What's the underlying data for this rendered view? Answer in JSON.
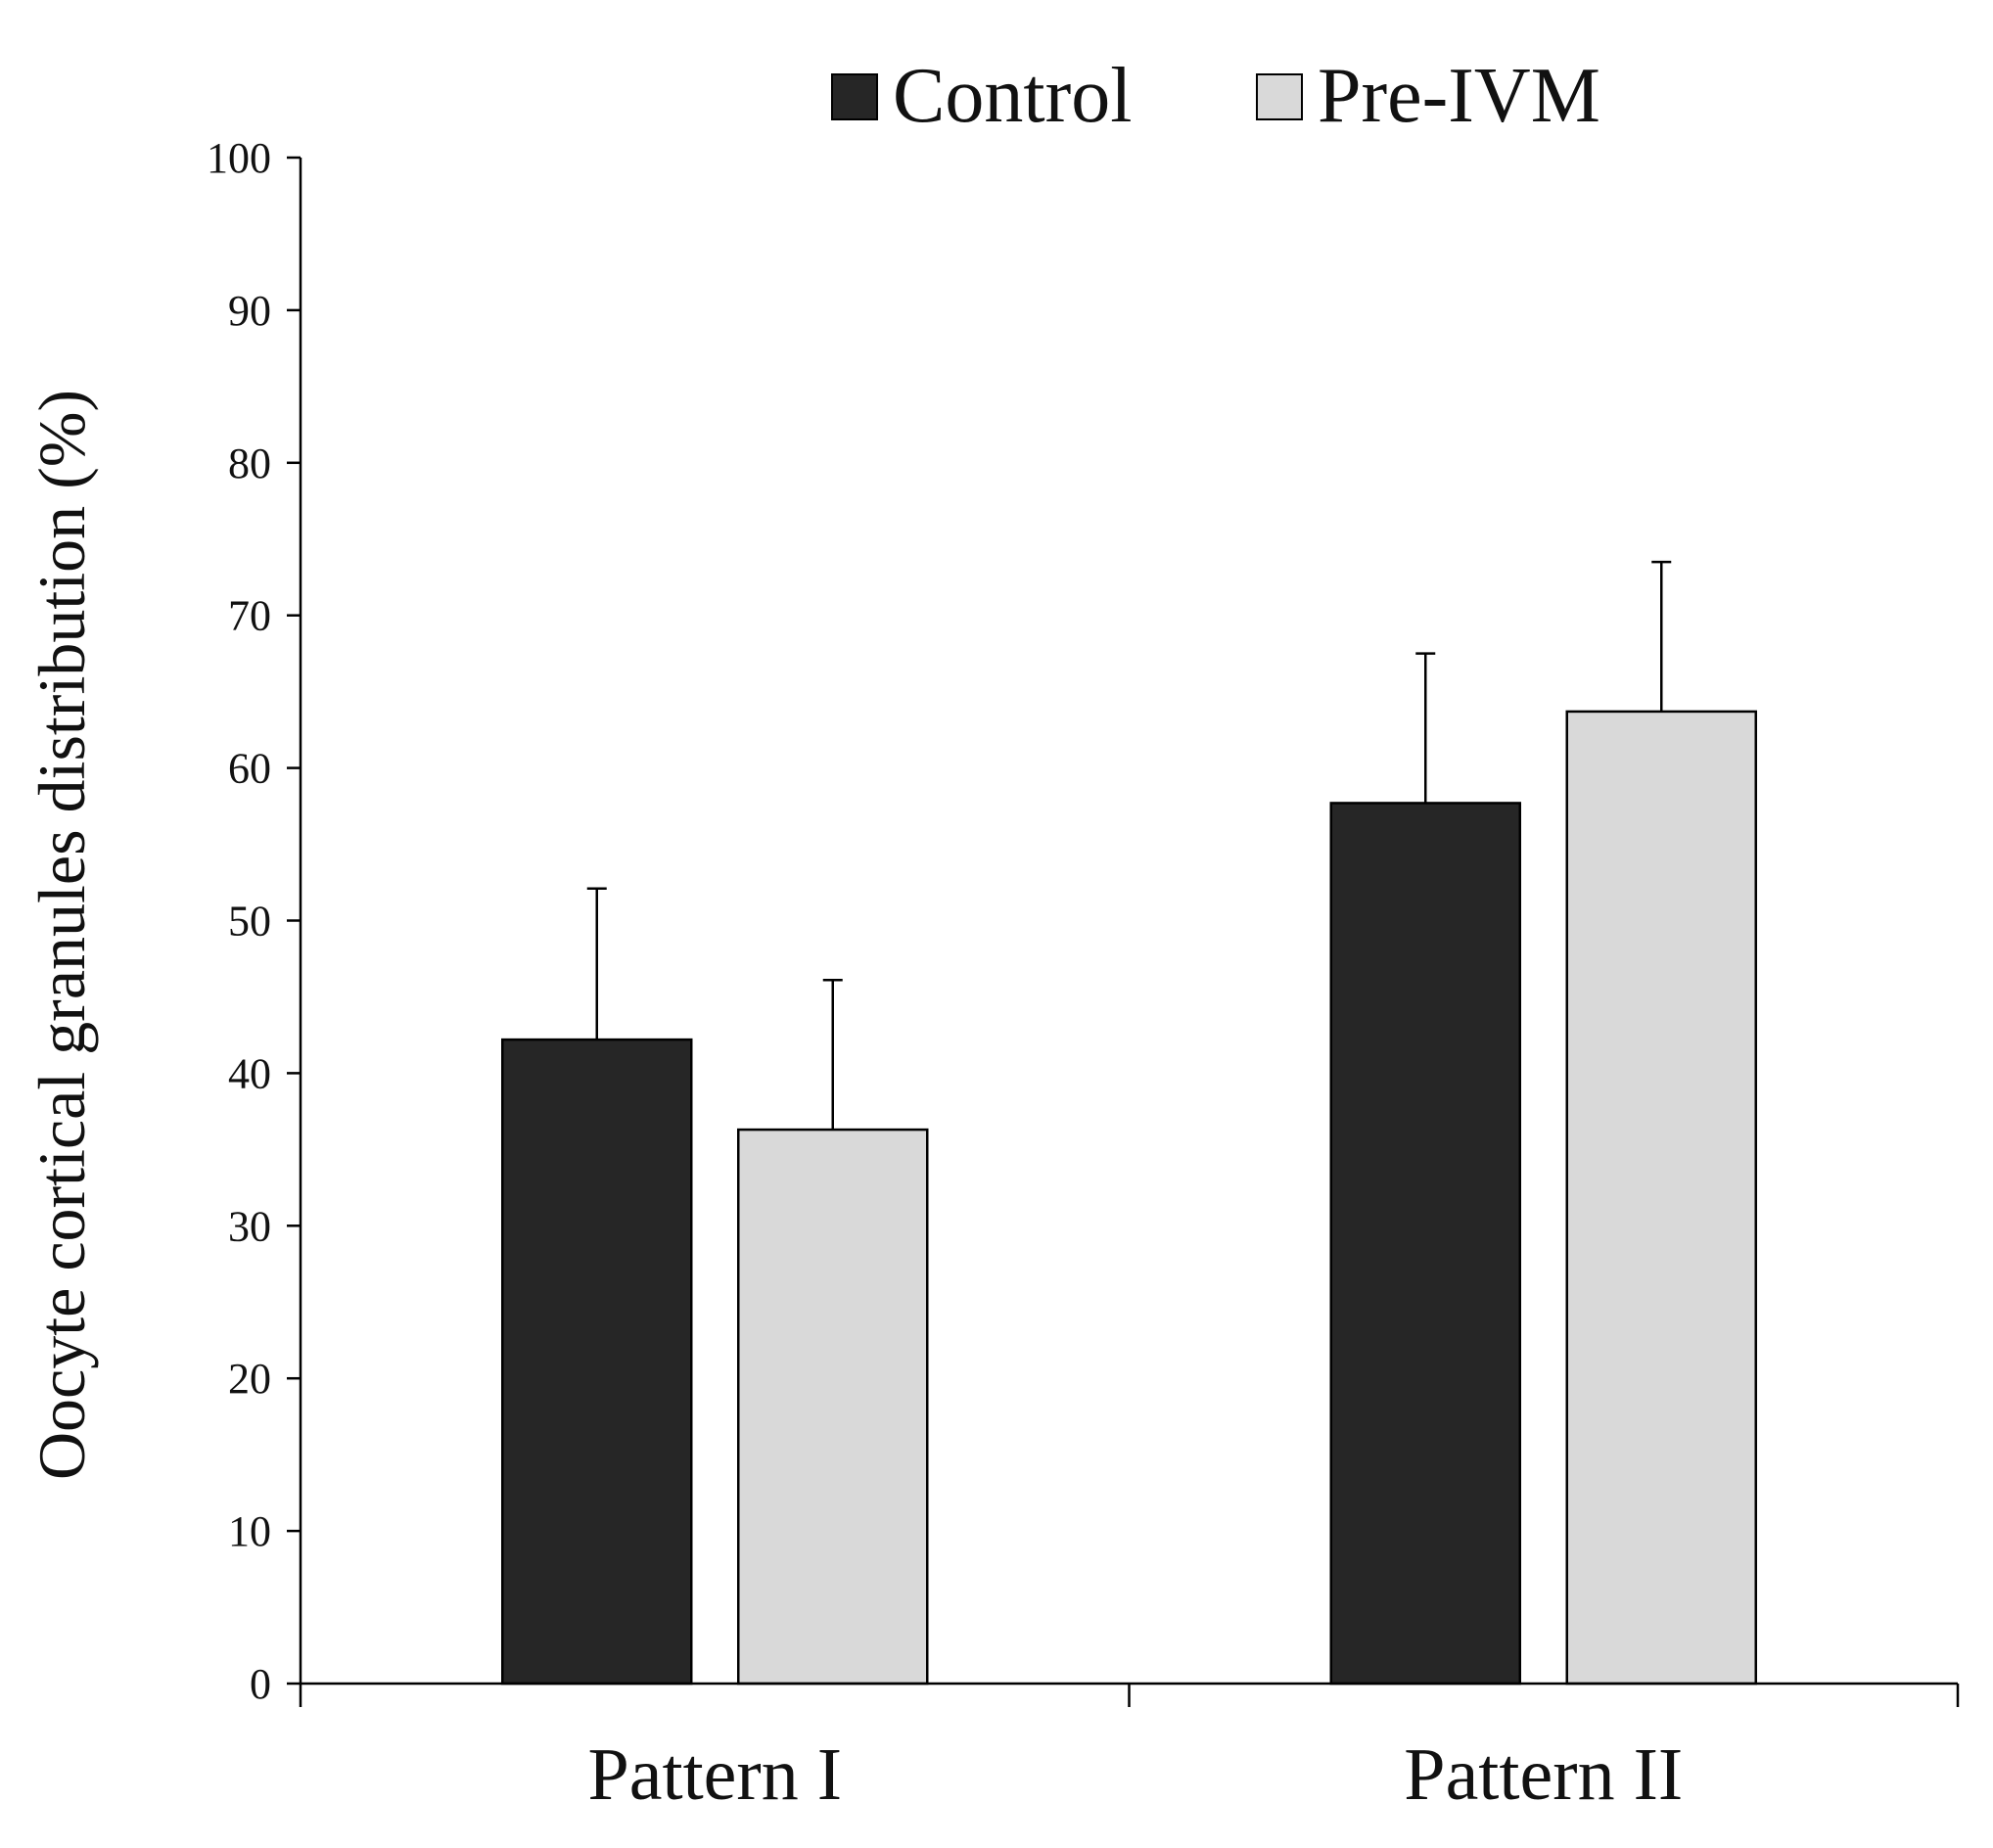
{
  "chart_data": {
    "type": "bar",
    "title": "",
    "xlabel": "",
    "ylabel": "Oocyte cortical granules distribution (%)",
    "categories": [
      "Pattern I",
      "Pattern II"
    ],
    "series": [
      {
        "name": "Control",
        "color": "#262626",
        "values": [
          42.2,
          57.7
        ],
        "error": [
          9.9,
          9.8
        ]
      },
      {
        "name": "Pre-IVM",
        "color": "#d9d9d9",
        "values": [
          36.3,
          63.7
        ],
        "error": [
          9.8,
          9.8
        ]
      }
    ],
    "ylim": [
      0,
      100
    ],
    "yticks": [
      0,
      10,
      20,
      30,
      40,
      50,
      60,
      70,
      80,
      90,
      100
    ],
    "grid": false,
    "legend_position": "top-center"
  }
}
